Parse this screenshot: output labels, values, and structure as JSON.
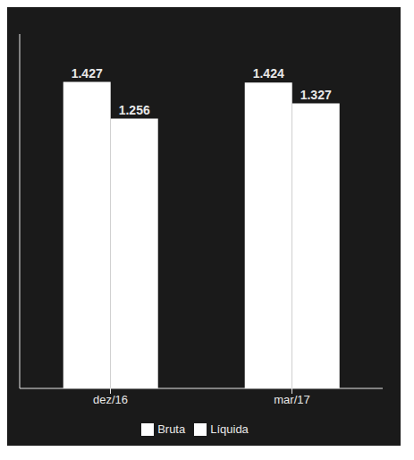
{
  "chart_data": {
    "type": "bar",
    "categories": [
      "dez/16",
      "mar/17"
    ],
    "series": [
      {
        "name": "Bruta",
        "color": "#ffffff",
        "values": [
          1.427,
          1.424
        ]
      },
      {
        "name": "Líquida",
        "color": "#ffffff",
        "values": [
          1.256,
          1.327
        ]
      }
    ],
    "ylim": [
      0,
      1.65
    ],
    "grid": false,
    "legend": "bottom",
    "data_labels": true,
    "tick_labels": "x"
  }
}
